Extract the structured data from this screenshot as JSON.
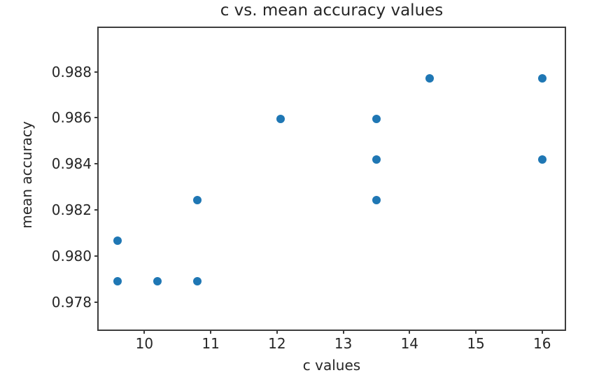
{
  "chart_data": {
    "type": "scatter",
    "title": "c vs. mean accuracy values",
    "xlabel": "c values",
    "ylabel": "mean accuracy",
    "xlim": [
      9.31,
      16.34
    ],
    "ylim": [
      0.9768,
      0.9899
    ],
    "grid": false,
    "legend": null,
    "marker_color": "#1f77b4",
    "spine_color": "#3d3d3d",
    "text_color": "#262626",
    "x_ticks": [
      {
        "value": 10,
        "label": "10"
      },
      {
        "value": 11,
        "label": "11"
      },
      {
        "value": 12,
        "label": "12"
      },
      {
        "value": 13,
        "label": "13"
      },
      {
        "value": 14,
        "label": "14"
      },
      {
        "value": 15,
        "label": "15"
      },
      {
        "value": 16,
        "label": "16"
      }
    ],
    "y_ticks": [
      {
        "value": 0.978,
        "label": "0.978"
      },
      {
        "value": 0.98,
        "label": "0.980"
      },
      {
        "value": 0.982,
        "label": "0.982"
      },
      {
        "value": 0.984,
        "label": "0.984"
      },
      {
        "value": 0.986,
        "label": "0.986"
      },
      {
        "value": 0.988,
        "label": "0.988"
      }
    ],
    "points": [
      {
        "x": 9.6,
        "y": 0.98067
      },
      {
        "x": 9.6,
        "y": 0.97891
      },
      {
        "x": 10.2,
        "y": 0.97891
      },
      {
        "x": 10.8,
        "y": 0.97891
      },
      {
        "x": 10.8,
        "y": 0.98243
      },
      {
        "x": 12.05,
        "y": 0.98594
      },
      {
        "x": 13.5,
        "y": 0.98594
      },
      {
        "x": 13.5,
        "y": 0.98418
      },
      {
        "x": 13.5,
        "y": 0.98243
      },
      {
        "x": 14.3,
        "y": 0.9877
      },
      {
        "x": 16.0,
        "y": 0.9877
      },
      {
        "x": 16.0,
        "y": 0.98418
      }
    ]
  }
}
